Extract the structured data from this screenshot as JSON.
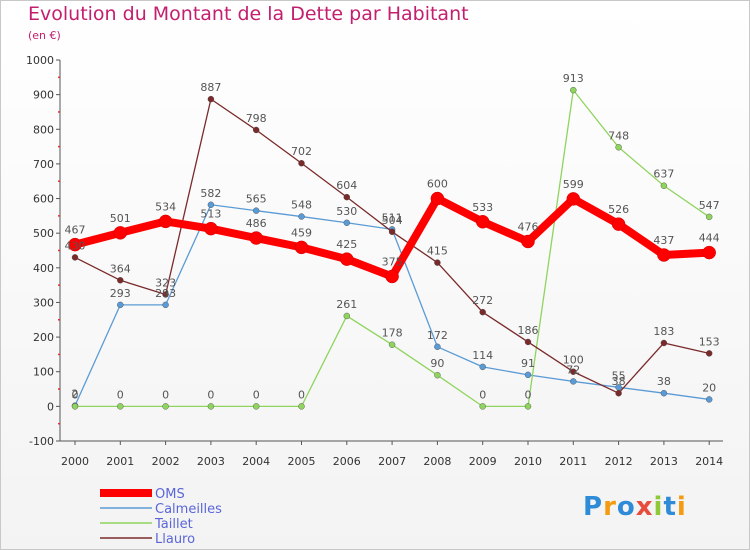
{
  "header": {
    "title": "Evolution du Montant de la Dette par Habitant",
    "unit": "(en €)"
  },
  "logo": {
    "text": "Proxiti"
  },
  "chart_data": {
    "type": "line",
    "title": "Evolution du Montant de la Dette par Habitant",
    "subtitle": "(en €)",
    "xlabel": "",
    "ylabel": "",
    "x": [
      2000,
      2001,
      2002,
      2003,
      2004,
      2005,
      2006,
      2007,
      2008,
      2009,
      2010,
      2011,
      2012,
      2013,
      2014
    ],
    "ylim": [
      -100,
      1000
    ],
    "yticks": [
      -100,
      0,
      100,
      200,
      300,
      400,
      500,
      600,
      700,
      800,
      900,
      1000
    ],
    "grid": false,
    "legend": "bottom-left",
    "series": [
      {
        "name": "Calmeilles",
        "color": "#5b9bd5",
        "values": [
          2,
          293,
          293,
          582,
          565,
          548,
          530,
          511,
          172,
          114,
          91,
          72,
          55,
          38,
          20
        ],
        "labels": [
          "2",
          "293",
          "293",
          "582",
          "565",
          "548",
          "530",
          "511",
          "172",
          "114",
          "91",
          "72",
          "55",
          "38",
          "20"
        ]
      },
      {
        "name": "Taillet",
        "color": "#8fd45e",
        "values": [
          0,
          0,
          0,
          0,
          0,
          0,
          261,
          178,
          90,
          0,
          0,
          913,
          748,
          637,
          547
        ],
        "labels": [
          "0",
          "0",
          "0",
          "0",
          "0",
          "0",
          "261",
          "178",
          "90",
          "0",
          "0",
          "913",
          "748",
          "637",
          "547"
        ]
      },
      {
        "name": "Llauro",
        "color": "#7a2a2a",
        "values": [
          430,
          364,
          323,
          887,
          798,
          702,
          604,
          504,
          415,
          272,
          186,
          100,
          38,
          183,
          153
        ],
        "labels": [
          "430",
          "364",
          "323",
          "887",
          "798",
          "702",
          "604",
          "504",
          "415",
          "272",
          "186",
          "100",
          "38",
          "183",
          "153"
        ]
      },
      {
        "name": "OMS",
        "color": "#ff0000",
        "values": [
          467,
          501,
          534,
          513,
          486,
          459,
          425,
          375,
          600,
          533,
          476,
          599,
          526,
          437,
          444
        ],
        "labels": [
          "467",
          "501",
          "534",
          "513",
          "486",
          "459",
          "425",
          "375",
          "600",
          "533",
          "476",
          "599",
          "526",
          "437",
          "444"
        ]
      }
    ]
  }
}
